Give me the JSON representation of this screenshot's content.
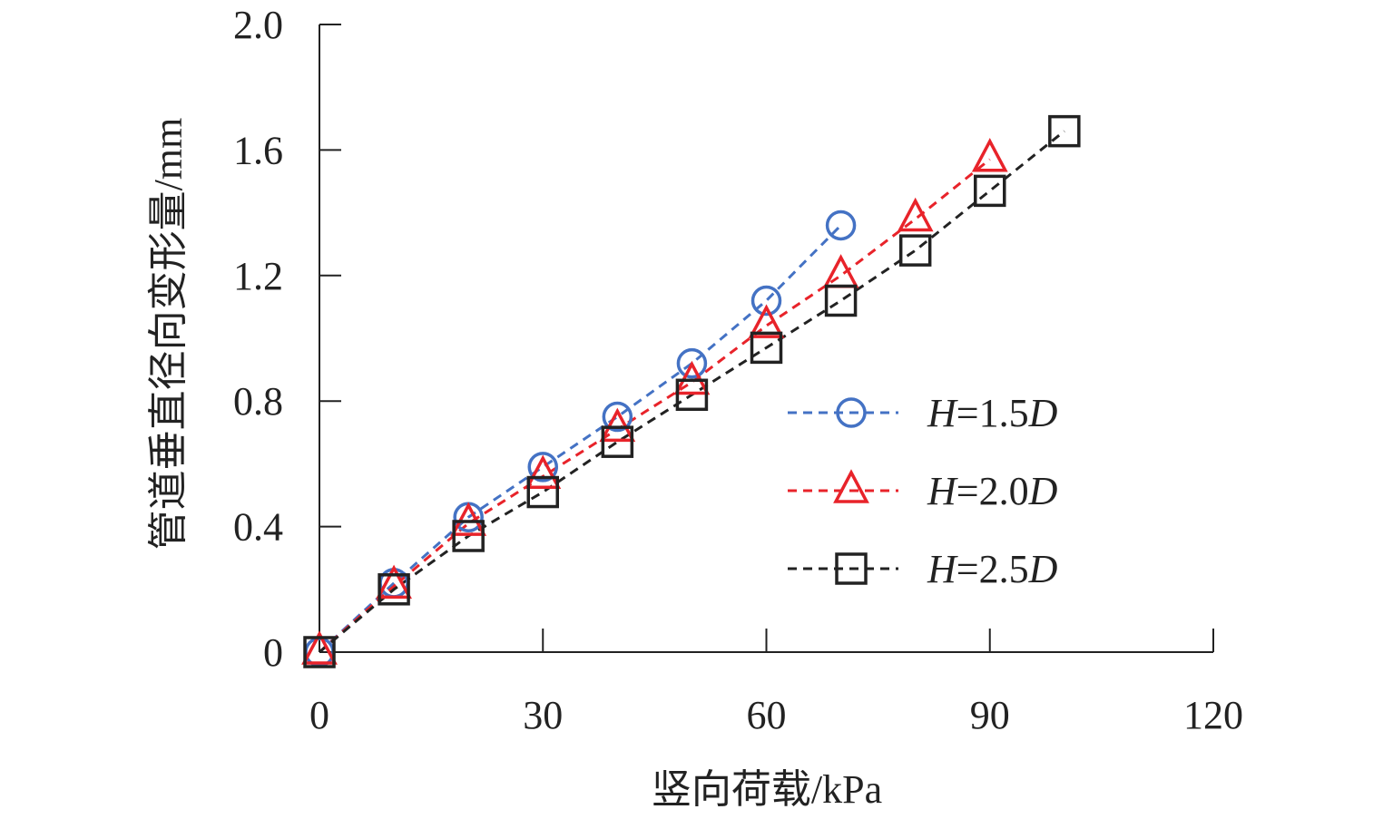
{
  "chart_data": {
    "type": "line",
    "title": "",
    "xlabel": "竖向荷载/kPa",
    "ylabel": "管道垂直径向变形量/mm",
    "xlim": [
      0,
      120
    ],
    "ylim": [
      0,
      2.0
    ],
    "x_ticks": [
      "0",
      "30",
      "60",
      "90",
      "120"
    ],
    "y_ticks": [
      "0",
      "0.4",
      "0.8",
      "1.2",
      "1.6",
      "2.0"
    ],
    "grid": false,
    "legend_position": "right",
    "series": [
      {
        "name": "H=1.5D",
        "name_parts": [
          "H",
          "=1.5",
          "D"
        ],
        "color": "#4472c4",
        "marker": "circle",
        "line_style": "dashed",
        "x": [
          0,
          10,
          20,
          30,
          40,
          50,
          60,
          70
        ],
        "y": [
          0,
          0.22,
          0.43,
          0.59,
          0.75,
          0.92,
          1.12,
          1.36
        ]
      },
      {
        "name": "H=2.0D",
        "name_parts": [
          "H",
          "=2.0",
          "D"
        ],
        "color": "#e8232a",
        "marker": "triangle",
        "line_style": "dashed",
        "x": [
          0,
          10,
          20,
          30,
          40,
          50,
          60,
          70,
          80,
          90
        ],
        "y": [
          0,
          0.21,
          0.41,
          0.56,
          0.71,
          0.86,
          1.04,
          1.2,
          1.38,
          1.57
        ]
      },
      {
        "name": "H=2.5D",
        "name_parts": [
          "H",
          "=2.5",
          "D"
        ],
        "color": "#222222",
        "marker": "square",
        "line_style": "dashed",
        "x": [
          0,
          10,
          20,
          30,
          40,
          50,
          60,
          70,
          80,
          90,
          100
        ],
        "y": [
          0,
          0.2,
          0.37,
          0.51,
          0.67,
          0.82,
          0.97,
          1.12,
          1.28,
          1.47,
          1.66
        ]
      }
    ]
  }
}
